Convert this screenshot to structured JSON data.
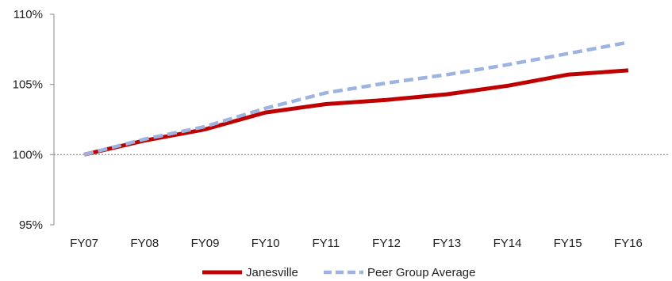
{
  "chart_data": {
    "type": "line",
    "title": "",
    "xlabel": "",
    "ylabel": "",
    "categories": [
      "FY07",
      "FY08",
      "FY09",
      "FY10",
      "FY11",
      "FY12",
      "FY13",
      "FY14",
      "FY15",
      "FY16"
    ],
    "ylim": [
      95,
      110
    ],
    "yticks": [
      95,
      100,
      105,
      110
    ],
    "ytick_labels": [
      "95%",
      "100%",
      "105%",
      "110%"
    ],
    "reference_line": 100,
    "grid": false,
    "legend_position": "bottom",
    "series": [
      {
        "name": "Janesville",
        "color": "#c00000",
        "style": "solid",
        "values": [
          100.0,
          101.0,
          101.8,
          103.0,
          103.6,
          103.9,
          104.3,
          104.9,
          105.7,
          106.0
        ]
      },
      {
        "name": "Peer Group Average",
        "color": "#9db3e0",
        "style": "dashed",
        "values": [
          100.0,
          101.1,
          102.0,
          103.3,
          104.4,
          105.1,
          105.7,
          106.4,
          107.2,
          108.0
        ]
      }
    ]
  }
}
